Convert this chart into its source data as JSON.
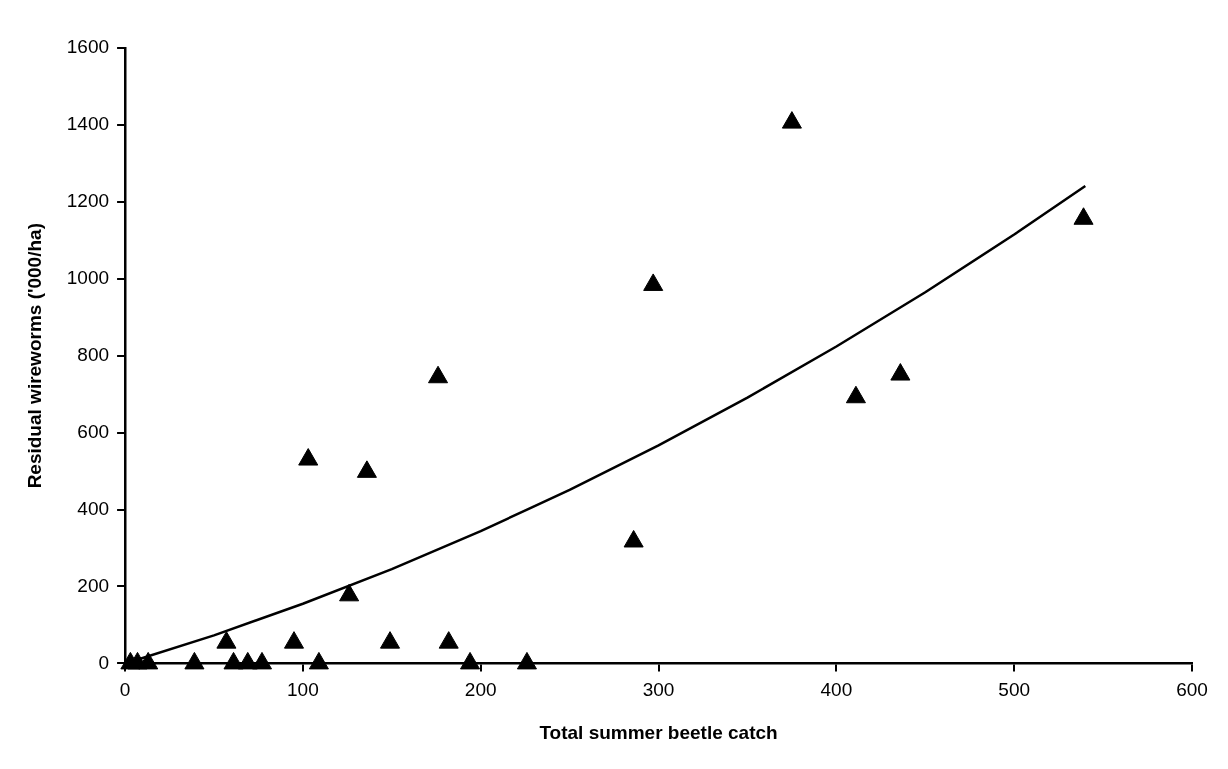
{
  "chart_data": {
    "type": "scatter",
    "xlabel": "Total summer beetle catch",
    "ylabel": "Residual wireworms ('000/ha)",
    "xlim": [
      0,
      600
    ],
    "xticks": [
      0,
      100,
      200,
      300,
      400,
      500,
      600
    ],
    "ylim": [
      0,
      1600
    ],
    "yticks": [
      0,
      200,
      400,
      600,
      800,
      1000,
      1200,
      1400,
      1600
    ],
    "grid": false,
    "legend": false,
    "marker": "triangle",
    "series": [
      {
        "type": "scatter",
        "color": "#000000",
        "x": [
          3,
          7,
          13,
          39,
          61,
          69,
          77,
          109,
          194,
          226,
          57,
          95,
          149,
          182,
          126,
          103,
          136,
          176,
          286,
          297,
          375,
          411,
          436,
          539
        ],
        "values": [
          0,
          0,
          0,
          0,
          0,
          0,
          0,
          0,
          0,
          0,
          54,
          54,
          54,
          54,
          177,
          530,
          498,
          744,
          317,
          984,
          1406,
          692,
          751,
          1156
        ]
      },
      {
        "type": "line",
        "color": "#000000",
        "marker": "none",
        "line_style": "solid",
        "x": [
          5,
          50,
          100,
          150,
          200,
          250,
          300,
          350,
          400,
          450,
          500,
          540
        ],
        "values": [
          7,
          73,
          155,
          245,
          344,
          451,
          567,
          691,
          824,
          965,
          1115,
          1241
        ]
      }
    ]
  }
}
